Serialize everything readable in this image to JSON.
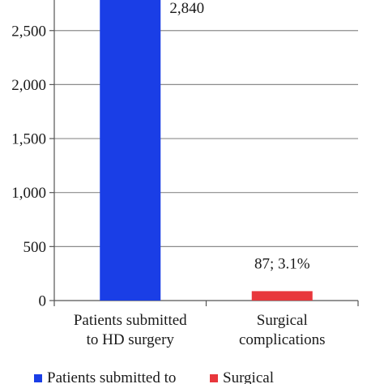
{
  "chart_data": {
    "type": "bar",
    "title": "",
    "xlabel": "",
    "ylabel": "",
    "ylim": [
      0,
      2750
    ],
    "yticks": [
      0,
      500,
      1000,
      1500,
      2000,
      2500
    ],
    "ytick_labels": [
      "0",
      "500",
      "1,000",
      "1,500",
      "2,000",
      "2,500"
    ],
    "grid": true,
    "categories": [
      [
        "Patients submitted",
        "to HD surgery"
      ],
      [
        "Surgical",
        "complications"
      ]
    ],
    "values": [
      2840,
      87
    ],
    "data_labels": [
      "2,840",
      "87; 3.1%"
    ],
    "colors": [
      "#1a3ee6",
      "#e8373c"
    ],
    "legend": {
      "placement": "bottom",
      "entries": [
        {
          "label": "Patients submitted to",
          "color": "#1a3ee6"
        },
        {
          "label": "Surgical",
          "color": "#e8373c"
        }
      ]
    }
  }
}
